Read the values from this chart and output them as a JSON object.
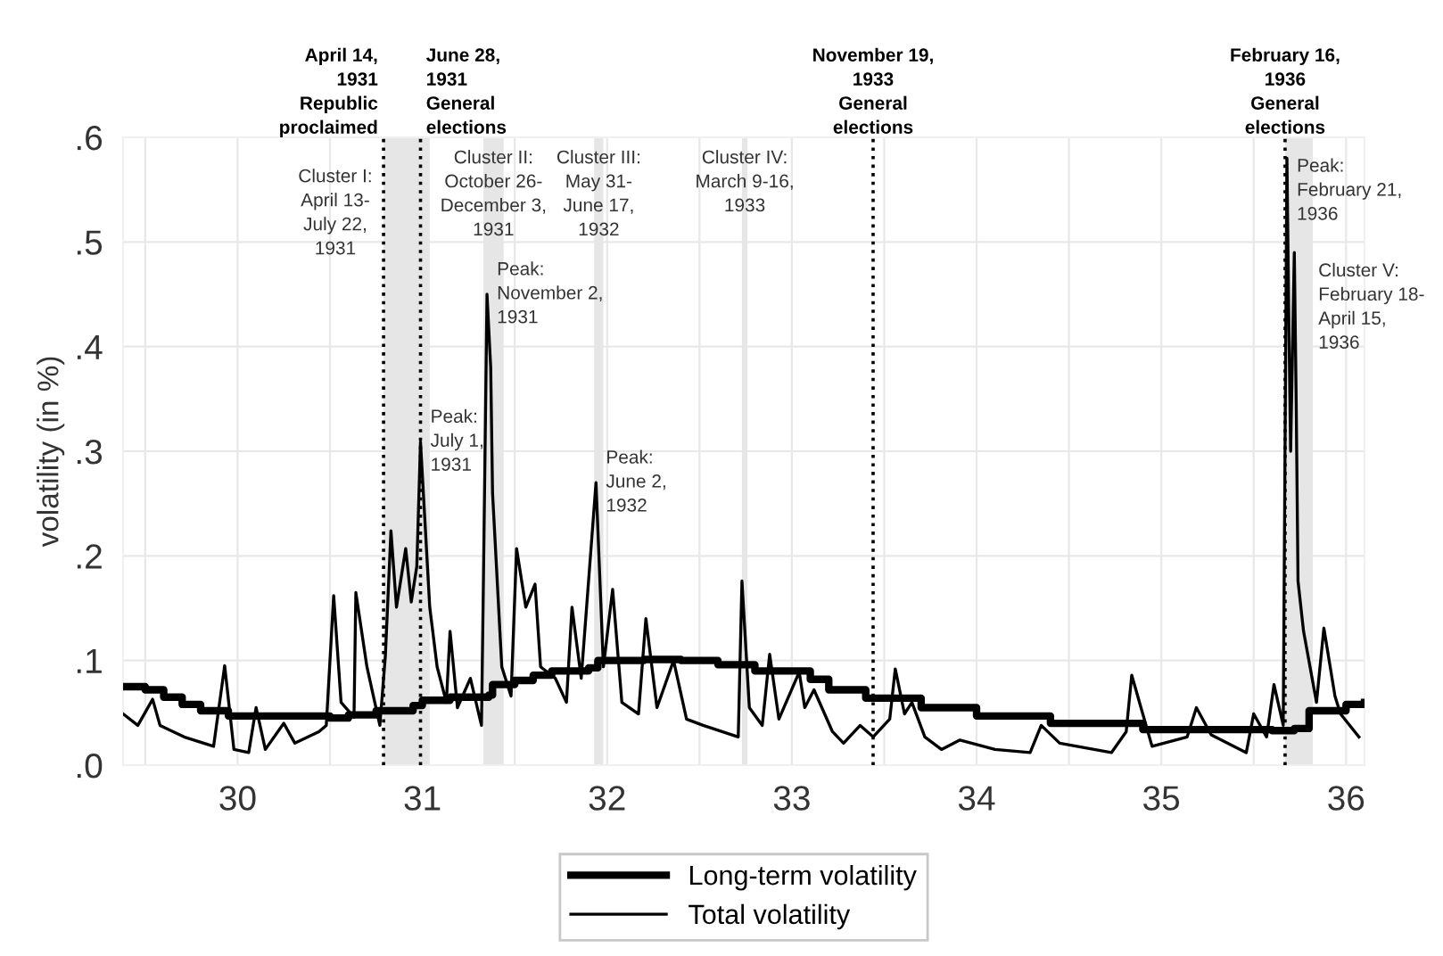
{
  "chart_data": {
    "type": "line",
    "ylabel": "volatility (in %)",
    "xlim": [
      29.38,
      36.1
    ],
    "ylim": [
      0,
      0.6
    ],
    "xticks": [
      {
        "value": 29.5,
        "label": null
      },
      30,
      {
        "value": 30.5,
        "label": null
      },
      31,
      {
        "value": 31.5,
        "label": null
      },
      32,
      {
        "value": 32.5,
        "label": null
      },
      33,
      {
        "value": 33.5,
        "label": null
      },
      34,
      {
        "value": 34.5,
        "label": null
      },
      35,
      {
        "value": 35.5,
        "label": null
      },
      36
    ],
    "yticks": [
      {
        "value": 0,
        "label": ".0"
      },
      {
        "value": 0.1,
        "label": ".1"
      },
      {
        "value": 0.2,
        "label": ".2"
      },
      {
        "value": 0.3,
        "label": ".3"
      },
      {
        "value": 0.4,
        "label": ".4"
      },
      {
        "value": 0.5,
        "label": ".5"
      },
      {
        "value": 0.6,
        "label": ".6"
      }
    ],
    "grid": true,
    "legend": "bottom",
    "series": [
      {
        "name": "Long-term volatility",
        "type": "step",
        "color": "#000000",
        "x": [
          29.38,
          29.5,
          29.6,
          29.7,
          29.8,
          29.95,
          30.5,
          30.6,
          30.75,
          30.95,
          31.0,
          31.15,
          31.36,
          31.38,
          31.5,
          31.6,
          31.7,
          31.9,
          31.95,
          32.2,
          32.4,
          32.6,
          32.8,
          33.1,
          33.2,
          33.4,
          33.7,
          34.0,
          34.4,
          34.9,
          35.6,
          35.72,
          35.8,
          36.0,
          36.1
        ],
        "values": [
          0.075,
          0.072,
          0.065,
          0.058,
          0.052,
          0.047,
          0.045,
          0.048,
          0.052,
          0.057,
          0.062,
          0.065,
          0.067,
          0.077,
          0.081,
          0.086,
          0.09,
          0.093,
          0.1,
          0.101,
          0.1,
          0.096,
          0.09,
          0.082,
          0.072,
          0.064,
          0.055,
          0.047,
          0.04,
          0.034,
          0.033,
          0.035,
          0.052,
          0.058,
          0.06
        ]
      },
      {
        "name": "Total volatility",
        "color": "#000000",
        "x": [
          29.38,
          29.46,
          29.54,
          29.58,
          29.71,
          29.87,
          29.93,
          29.98,
          30.06,
          30.1,
          30.15,
          30.25,
          30.31,
          30.44,
          30.48,
          30.52,
          30.56,
          30.63,
          30.64,
          30.7,
          30.77,
          30.8,
          30.83,
          30.86,
          30.91,
          30.94,
          30.97,
          30.99,
          31.04,
          31.08,
          31.13,
          31.15,
          31.19,
          31.26,
          31.32,
          31.33,
          31.35,
          31.37,
          31.38,
          31.43,
          31.48,
          31.51,
          31.56,
          31.61,
          31.64,
          31.72,
          31.78,
          31.81,
          31.86,
          31.94,
          31.98,
          32.03,
          32.08,
          32.17,
          32.21,
          32.27,
          32.36,
          32.43,
          32.52,
          32.71,
          32.73,
          32.77,
          32.84,
          32.88,
          32.93,
          33.04,
          33.07,
          33.12,
          33.22,
          33.28,
          33.37,
          33.44,
          33.53,
          33.56,
          33.61,
          33.65,
          33.72,
          33.81,
          33.91,
          34.1,
          34.29,
          34.35,
          34.45,
          34.73,
          34.81,
          34.84,
          34.89,
          34.95,
          35.14,
          35.19,
          35.27,
          35.46,
          35.5,
          35.57,
          35.61,
          35.66,
          35.68,
          35.69,
          35.7,
          35.72,
          35.73,
          35.74,
          35.77,
          35.84,
          35.88,
          35.94,
          35.97,
          36.07
        ],
        "values": [
          0.049,
          0.038,
          0.063,
          0.038,
          0.027,
          0.018,
          0.095,
          0.015,
          0.012,
          0.055,
          0.015,
          0.04,
          0.021,
          0.032,
          0.038,
          0.162,
          0.06,
          0.046,
          0.165,
          0.094,
          0.038,
          0.105,
          0.224,
          0.151,
          0.207,
          0.156,
          0.19,
          0.309,
          0.151,
          0.094,
          0.06,
          0.128,
          0.055,
          0.083,
          0.038,
          0.168,
          0.45,
          0.38,
          0.26,
          0.094,
          0.066,
          0.207,
          0.151,
          0.173,
          0.094,
          0.083,
          0.06,
          0.151,
          0.083,
          0.27,
          0.094,
          0.168,
          0.06,
          0.049,
          0.14,
          0.055,
          0.1,
          0.044,
          0.038,
          0.027,
          0.176,
          0.055,
          0.038,
          0.106,
          0.044,
          0.089,
          0.055,
          0.072,
          0.032,
          0.021,
          0.038,
          0.027,
          0.044,
          0.092,
          0.049,
          0.06,
          0.027,
          0.015,
          0.024,
          0.015,
          0.012,
          0.038,
          0.021,
          0.012,
          0.032,
          0.086,
          0.055,
          0.018,
          0.027,
          0.055,
          0.029,
          0.012,
          0.049,
          0.027,
          0.077,
          0.038,
          0.58,
          0.43,
          0.3,
          0.49,
          0.35,
          0.176,
          0.128,
          0.06,
          0.131,
          0.066,
          0.049,
          0.027
        ]
      }
    ],
    "bands": [
      {
        "axis": "x",
        "from": 30.79,
        "to": 31.04,
        "color": "#e6e6e6"
      },
      {
        "axis": "x",
        "from": 31.33,
        "to": 31.44,
        "color": "#e6e6e6"
      },
      {
        "axis": "x",
        "from": 31.93,
        "to": 31.98,
        "color": "#e6e6e6"
      },
      {
        "axis": "x",
        "from": 32.73,
        "to": 32.76,
        "color": "#e6e6e6"
      },
      {
        "axis": "x",
        "from": 35.67,
        "to": 35.82,
        "color": "#e6e6e6"
      }
    ],
    "ref_lines": [
      {
        "axis": "x",
        "value": 30.79,
        "label": "April 14,\n1931\nRepublic\nproclaimed",
        "line_style": "dotted",
        "color": "#000000"
      },
      {
        "axis": "x",
        "value": 30.99,
        "label": "June 28,\n1931\nGeneral\nelections",
        "line_style": "dotted",
        "color": "#000000"
      },
      {
        "axis": "x",
        "value": 33.44,
        "label": "November 19,\n1933\nGeneral\nelections",
        "line_style": "dotted",
        "color": "#000000"
      },
      {
        "axis": "x",
        "value": 35.67,
        "label": "February 16,\n1936\nGeneral\nelections",
        "line_style": "dotted",
        "color": "#000000"
      }
    ],
    "annotations": [
      "Cluster I:\nApril 13-\nJuly 22,\n1931",
      "Cluster II:\nOctober 26-\nDecember 3,\n1931",
      "Cluster III:\nMay 31-\nJune 17,\n1932",
      "Cluster IV:\nMarch 9-16,\n1933",
      {
        "text": "Peak:\nJuly 1,\n1931",
        "x": 30.99,
        "y": 0.309
      },
      {
        "text": "Peak:\nNovember 2,\n1931",
        "x": 31.35,
        "y": 0.45
      },
      {
        "text": "Peak:\nJune 2,\n1932",
        "x": 31.94,
        "y": 0.27
      },
      {
        "text": "Peak:\nFebruary 21,\n1936",
        "x": 35.68,
        "y": 0.58
      },
      "Cluster V:\nFebruary 18-\nApril 15,\n1936"
    ]
  }
}
